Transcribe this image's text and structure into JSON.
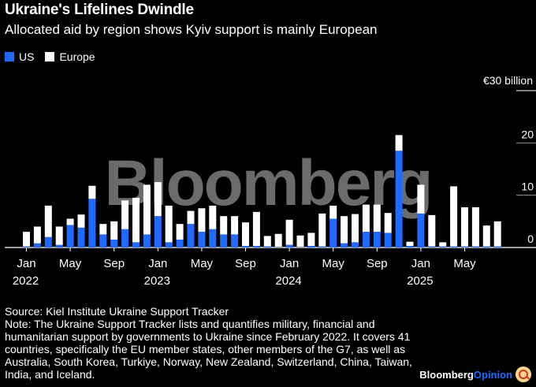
{
  "title": "Ukraine's Lifelines Dwindle",
  "subtitle": "Allocated aid by region shows Kyiv support is mainly European",
  "legend": {
    "us": "US",
    "europe": "Europe"
  },
  "colors": {
    "us": "#1f6bff",
    "europe": "#ffffff",
    "background": "#000000"
  },
  "watermark": "Bloomberg",
  "footer": {
    "source": "Source: Kiel Institute Ukraine Support Tracker",
    "note": "Note: The Ukraine Support Tracker lists and quantifies military, financial and humanitarian support by governments to Ukraine since February 2022. It covers 41 countries, specifically the EU member states, other members of the G7, as well as Australia, South Korea, Turkiye, Norway, New Zealand, Switzerland, China, Taiwan, India, and Iceland."
  },
  "brand": {
    "name": "Bloomberg",
    "suffix": "Opinion"
  },
  "chart_data": {
    "type": "bar",
    "stacked": true,
    "title": "Ukraine's Lifelines Dwindle",
    "subtitle": "Allocated aid by region shows Kyiv support is mainly European",
    "ylabel": "",
    "ylim": [
      0,
      30
    ],
    "yticks": [
      0,
      10,
      20
    ],
    "ytick_labels": [
      "0",
      "10",
      "20"
    ],
    "top_tick_label": "€30 billion",
    "legend_position": "top-left",
    "grid": true,
    "x_tick_labels": [
      {
        "index": 0,
        "month": "Jan",
        "year": "2022"
      },
      {
        "index": 4,
        "month": "May",
        "year": ""
      },
      {
        "index": 8,
        "month": "Sep",
        "year": ""
      },
      {
        "index": 12,
        "month": "Jan",
        "year": "2023"
      },
      {
        "index": 16,
        "month": "May",
        "year": ""
      },
      {
        "index": 20,
        "month": "Sep",
        "year": ""
      },
      {
        "index": 24,
        "month": "Jan",
        "year": "2024"
      },
      {
        "index": 28,
        "month": "May",
        "year": ""
      },
      {
        "index": 32,
        "month": "Sep",
        "year": ""
      },
      {
        "index": 36,
        "month": "Jan",
        "year": "2025"
      },
      {
        "index": 40,
        "month": "May",
        "year": ""
      }
    ],
    "categories": [
      "2022-01",
      "2022-02",
      "2022-03",
      "2022-04",
      "2022-05",
      "2022-06",
      "2022-07",
      "2022-08",
      "2022-09",
      "2022-10",
      "2022-11",
      "2022-12",
      "2023-01",
      "2023-02",
      "2023-03",
      "2023-04",
      "2023-05",
      "2023-06",
      "2023-07",
      "2023-08",
      "2023-09",
      "2023-10",
      "2023-11",
      "2023-12",
      "2024-01",
      "2024-02",
      "2024-03",
      "2024-04",
      "2024-05",
      "2024-06",
      "2024-07",
      "2024-08",
      "2024-09",
      "2024-10",
      "2024-11",
      "2024-12",
      "2025-01",
      "2025-02",
      "2025-03",
      "2025-04",
      "2025-05",
      "2025-06",
      "2025-07",
      "2025-08"
    ],
    "series": [
      {
        "name": "US",
        "values": [
          0.2,
          0.8,
          2.0,
          0.5,
          4.3,
          3.8,
          9.3,
          2.5,
          1.5,
          3.5,
          1.0,
          2.5,
          6.0,
          1.0,
          1.5,
          4.5,
          3.0,
          3.5,
          2.5,
          2.5,
          0.3,
          0.3,
          0.2,
          0.1,
          0.5,
          0.1,
          0.3,
          0.2,
          5.5,
          0.8,
          1.0,
          3.0,
          3.0,
          2.8,
          18.5,
          0.3,
          6.5,
          0.2,
          0.2,
          0.2,
          0.2,
          0.2,
          0.2,
          0.2
        ]
      },
      {
        "name": "Europe",
        "values": [
          2.8,
          3.2,
          6.0,
          3.5,
          1.2,
          2.5,
          2.5,
          2.0,
          3.5,
          5.5,
          8.5,
          9.5,
          6.5,
          7.0,
          3.0,
          2.5,
          4.5,
          4.5,
          3.5,
          3.5,
          4.5,
          6.5,
          2.0,
          2.5,
          4.8,
          2.2,
          2.5,
          6.3,
          2.5,
          5.2,
          5.4,
          5.2,
          5.2,
          3.8,
          3.0,
          0.8,
          5.5,
          6.0,
          0.8,
          11.5,
          7.5,
          7.5,
          4.0,
          4.8
        ]
      }
    ]
  }
}
